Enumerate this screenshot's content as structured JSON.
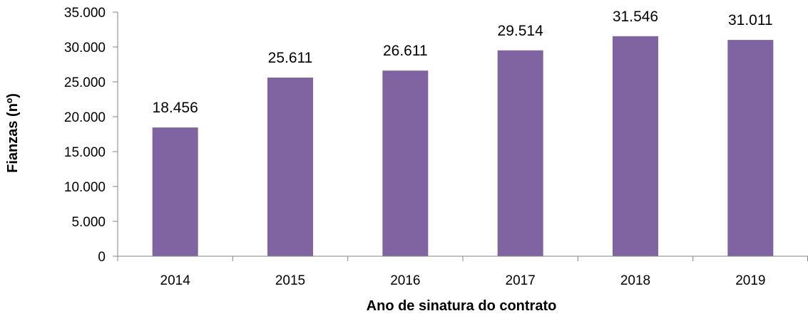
{
  "chart_data": {
    "type": "bar",
    "title": "",
    "xlabel": "Ano de sinatura do contrato",
    "ylabel": "Fianzas (nº)",
    "categories": [
      "2014",
      "2015",
      "2016",
      "2017",
      "2018",
      "2019"
    ],
    "values": [
      18456,
      25611,
      26611,
      29514,
      31546,
      31011
    ],
    "value_labels": [
      "18.456",
      "25.611",
      "26.611",
      "29.514",
      "31.546",
      "31.011"
    ],
    "ylim": [
      0,
      35000
    ],
    "yticks": [
      0,
      5000,
      10000,
      15000,
      20000,
      25000,
      30000,
      35000
    ],
    "ytick_labels": [
      "0",
      "5.000",
      "10.000",
      "15.000",
      "20.000",
      "25.000",
      "30.000",
      "35.000"
    ],
    "grid": false,
    "legend": "none",
    "bar_color": "#8064a2",
    "axis_color": "#868686"
  }
}
